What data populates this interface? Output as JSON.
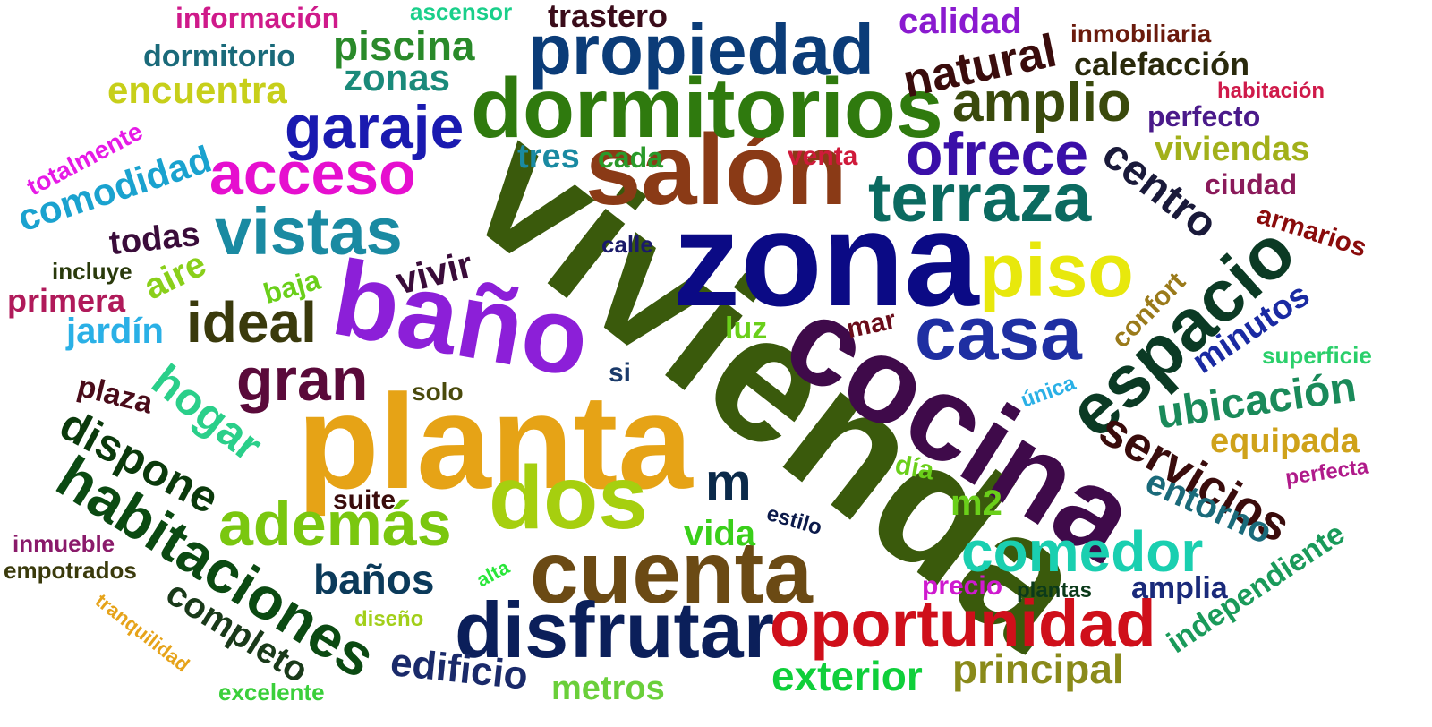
{
  "words": [
    {
      "text": "vivienda",
      "color": "#3a5a0c"
    },
    {
      "text": "zona",
      "color": "#0b0a85"
    },
    {
      "text": "planta",
      "color": "#e6a316"
    },
    {
      "text": "cocina",
      "color": "#3f0a4a"
    },
    {
      "text": "baño",
      "color": "#8c1fd8"
    },
    {
      "text": "salón",
      "color": "#8a3a16"
    },
    {
      "text": "dormitorios",
      "color": "#2f7a0e"
    },
    {
      "text": "dos",
      "color": "#a6cf0f"
    },
    {
      "text": "cuenta",
      "color": "#6b4a14"
    },
    {
      "text": "propiedad",
      "color": "#0b3c78"
    },
    {
      "text": "terraza",
      "color": "#0b6a60"
    },
    {
      "text": "espacio",
      "color": "#0b3a24"
    },
    {
      "text": "casa",
      "color": "#1f2fa2"
    },
    {
      "text": "piso",
      "color": "#e8e80c"
    },
    {
      "text": "disfrutar",
      "color": "#0b1f5a"
    },
    {
      "text": "oportunidad",
      "color": "#cf0f1a"
    },
    {
      "text": "habitaciones",
      "color": "#0b4a12"
    },
    {
      "text": "vistas",
      "color": "#1a8aa2"
    },
    {
      "text": "acceso",
      "color": "#e60fcf"
    },
    {
      "text": "además",
      "color": "#7ac70f"
    },
    {
      "text": "comedor",
      "color": "#1acfb0"
    },
    {
      "text": "garaje",
      "color": "#1a1ab0"
    },
    {
      "text": "ofrece",
      "color": "#3a0fa8"
    },
    {
      "text": "gran",
      "color": "#5a0a3a"
    },
    {
      "text": "ideal",
      "color": "#3a3a0c"
    },
    {
      "text": "amplio",
      "color": "#3a4a0c"
    },
    {
      "text": "natural",
      "color": "#3a0c0c"
    },
    {
      "text": "piscina",
      "color": "#2a8a2a"
    },
    {
      "text": "centro",
      "color": "#1a1a3a"
    },
    {
      "text": "servicios",
      "color": "#3a0c0c"
    },
    {
      "text": "dispone",
      "color": "#0b3a0c"
    },
    {
      "text": "hogar",
      "color": "#2acf8a"
    },
    {
      "text": "ubicación",
      "color": "#1a8a5a"
    },
    {
      "text": "m",
      "color": "#0b2a4a"
    },
    {
      "text": "comodidad",
      "color": "#1aa2cf"
    },
    {
      "text": "encuentra",
      "color": "#c7cf1a"
    },
    {
      "text": "zonas",
      "color": "#1a8a7a"
    },
    {
      "text": "completo",
      "color": "#1a3a1a"
    },
    {
      "text": "baños",
      "color": "#0b3a5a"
    },
    {
      "text": "exterior",
      "color": "#0fcf3a"
    },
    {
      "text": "principal",
      "color": "#8a8a1a"
    },
    {
      "text": "edificio",
      "color": "#1a2a6a"
    },
    {
      "text": "entorno",
      "color": "#1a6a7a"
    },
    {
      "text": "minutos",
      "color": "#1a2aa2"
    },
    {
      "text": "calidad",
      "color": "#8a1acf"
    },
    {
      "text": "calefacción",
      "color": "#2a2a0c"
    },
    {
      "text": "viviendas",
      "color": "#a2b01a"
    },
    {
      "text": "equipada",
      "color": "#cfa21a"
    },
    {
      "text": "jardín",
      "color": "#2ab0e6"
    },
    {
      "text": "aire",
      "color": "#8acf1a"
    },
    {
      "text": "vivir",
      "color": "#3a0c3a"
    },
    {
      "text": "primera",
      "color": "#b01a5a"
    },
    {
      "text": "todas",
      "color": "#3a0c3a"
    },
    {
      "text": "independiente",
      "color": "#1a9a5a"
    },
    {
      "text": "m2",
      "color": "#6acf1a"
    },
    {
      "text": "vida",
      "color": "#3acf1a"
    },
    {
      "text": "metros",
      "color": "#6acf3a"
    },
    {
      "text": "amplia",
      "color": "#1a2a7a"
    },
    {
      "text": "dormitorio",
      "color": "#1a6a7a"
    },
    {
      "text": "trastero",
      "color": "#3a0c1a"
    },
    {
      "text": "inmobiliaria",
      "color": "#6a1a0c"
    },
    {
      "text": "perfecto",
      "color": "#4a1a8a"
    },
    {
      "text": "ciudad",
      "color": "#8a1a5a"
    },
    {
      "text": "armarios",
      "color": "#8a0c0c"
    },
    {
      "text": "confort",
      "color": "#9a7a1a"
    },
    {
      "text": "superficie",
      "color": "#2acf6a"
    },
    {
      "text": "tres",
      "color": "#1a8aa2"
    },
    {
      "text": "cada",
      "color": "#2a9a2a"
    },
    {
      "text": "venta",
      "color": "#cf1a3a"
    },
    {
      "text": "totalmente",
      "color": "#e61ae6"
    },
    {
      "text": "plaza",
      "color": "#4a0c1a"
    },
    {
      "text": "solo",
      "color": "#4a4a0c"
    },
    {
      "text": "suite",
      "color": "#3a0c0c"
    },
    {
      "text": "luz",
      "color": "#6acf1a"
    },
    {
      "text": "mar",
      "color": "#6a0c1a"
    },
    {
      "text": "si",
      "color": "#1a3a6a"
    },
    {
      "text": "baja",
      "color": "#6acf1a"
    },
    {
      "text": "incluye",
      "color": "#2a3a0c"
    },
    {
      "text": "calle",
      "color": "#1a1a6a"
    },
    {
      "text": "información",
      "color": "#cf1a8a"
    },
    {
      "text": "ascensor",
      "color": "#1acf8a"
    },
    {
      "text": "habitación",
      "color": "#cf1a4a"
    },
    {
      "text": "única",
      "color": "#2ab0e6"
    },
    {
      "text": "día",
      "color": "#6acf1a"
    },
    {
      "text": "perfecta",
      "color": "#b01a8a"
    },
    {
      "text": "estilo",
      "color": "#0b1a4a"
    },
    {
      "text": "alta",
      "color": "#2ae63a"
    },
    {
      "text": "precio",
      "color": "#cf1acf"
    },
    {
      "text": "plantas",
      "color": "#0b3a1a"
    },
    {
      "text": "diseño",
      "color": "#a2cf1a"
    },
    {
      "text": "inmueble",
      "color": "#8a1a6a"
    },
    {
      "text": "empotrados",
      "color": "#3a3a0c"
    },
    {
      "text": "tranquilidad",
      "color": "#e6a31a"
    },
    {
      "text": "excelente",
      "color": "#3acf3a"
    }
  ]
}
